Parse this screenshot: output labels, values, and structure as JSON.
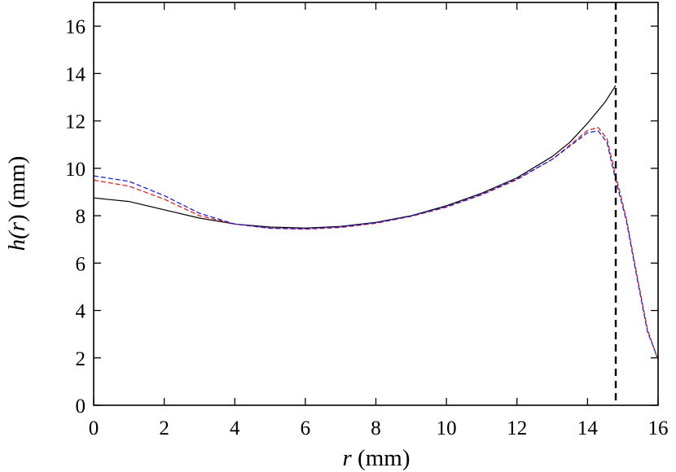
{
  "chart_data": {
    "type": "line",
    "title": "",
    "xlabel_var": "r",
    "xlabel_unit": " (mm)",
    "ylabel_func": "h(",
    "ylabel_var": "r",
    "ylabel_close": ") (mm)",
    "xlim": [
      0,
      16
    ],
    "ylim": [
      0,
      17
    ],
    "xticks": [
      0,
      2,
      4,
      6,
      8,
      10,
      12,
      14,
      16
    ],
    "yticks": [
      0,
      2,
      4,
      6,
      8,
      10,
      12,
      14,
      16
    ],
    "grid": false,
    "legend": "none",
    "vertical_line": {
      "x": 14.8,
      "color": "#000000",
      "style": "dashed"
    },
    "series": [
      {
        "color": "#000000",
        "style": "solid",
        "points": [
          [
            0,
            8.75
          ],
          [
            1,
            8.6
          ],
          [
            2,
            8.25
          ],
          [
            3,
            7.9
          ],
          [
            4,
            7.65
          ],
          [
            5,
            7.52
          ],
          [
            6,
            7.48
          ],
          [
            7,
            7.55
          ],
          [
            8,
            7.72
          ],
          [
            9,
            8.0
          ],
          [
            10,
            8.42
          ],
          [
            11,
            8.95
          ],
          [
            12,
            9.6
          ],
          [
            13,
            10.5
          ],
          [
            13.5,
            11.1
          ],
          [
            14,
            11.9
          ],
          [
            14.5,
            12.8
          ],
          [
            14.8,
            13.5
          ]
        ]
      },
      {
        "color": "#dd2222",
        "style": "dashed",
        "points": [
          [
            0,
            9.5
          ],
          [
            1,
            9.25
          ],
          [
            2,
            8.7
          ],
          [
            3,
            8.0
          ],
          [
            4,
            7.65
          ],
          [
            5,
            7.47
          ],
          [
            6,
            7.43
          ],
          [
            7,
            7.5
          ],
          [
            8,
            7.68
          ],
          [
            9,
            7.97
          ],
          [
            10,
            8.36
          ],
          [
            11,
            8.88
          ],
          [
            12,
            9.52
          ],
          [
            13,
            10.38
          ],
          [
            13.6,
            11.1
          ],
          [
            14.0,
            11.6
          ],
          [
            14.3,
            11.72
          ],
          [
            14.55,
            11.25
          ],
          [
            14.8,
            9.7
          ],
          [
            15.1,
            7.9
          ],
          [
            15.4,
            5.5
          ],
          [
            15.7,
            3.2
          ],
          [
            16,
            1.9
          ]
        ]
      },
      {
        "color": "#2222dd",
        "style": "dashed",
        "points": [
          [
            0,
            9.68
          ],
          [
            1,
            9.45
          ],
          [
            2,
            8.85
          ],
          [
            3,
            8.1
          ],
          [
            4,
            7.65
          ],
          [
            5,
            7.47
          ],
          [
            6,
            7.45
          ],
          [
            7,
            7.52
          ],
          [
            8,
            7.7
          ],
          [
            9,
            7.98
          ],
          [
            10,
            8.38
          ],
          [
            11,
            8.9
          ],
          [
            12,
            9.55
          ],
          [
            13,
            10.38
          ],
          [
            13.6,
            11.05
          ],
          [
            14.0,
            11.5
          ],
          [
            14.3,
            11.58
          ],
          [
            14.55,
            11.1
          ],
          [
            14.8,
            9.5
          ],
          [
            15.1,
            7.8
          ],
          [
            15.4,
            5.4
          ],
          [
            15.7,
            3.1
          ],
          [
            16,
            1.95
          ]
        ]
      }
    ]
  }
}
